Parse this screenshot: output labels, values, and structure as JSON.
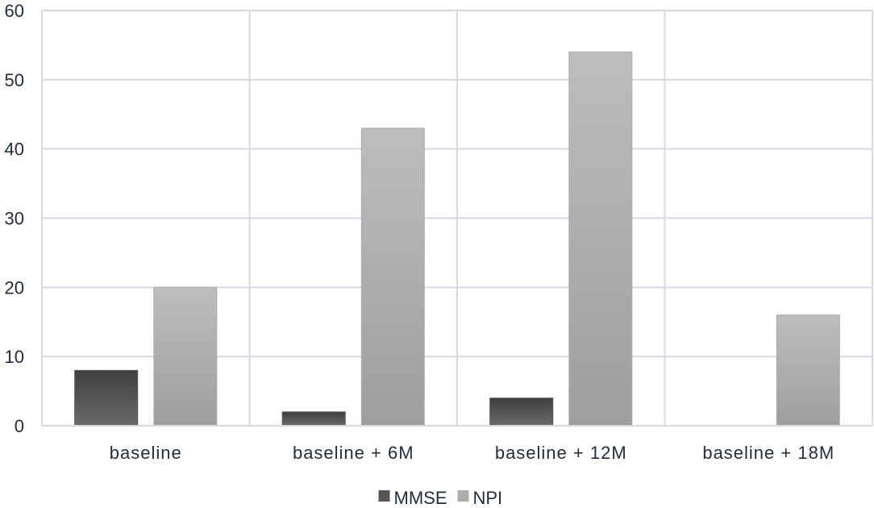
{
  "chart_data": {
    "type": "bar",
    "categories": [
      "baseline",
      "baseline + 6M",
      "baseline + 12M",
      "baseline + 18M"
    ],
    "series": [
      {
        "name": "MMSE",
        "values": [
          8,
          2,
          4,
          0
        ],
        "color": "#555555"
      },
      {
        "name": "NPI",
        "values": [
          20,
          43,
          54,
          16
        ],
        "color": "#adadad"
      }
    ],
    "ylim": [
      0,
      60
    ],
    "yticks": [
      0,
      10,
      20,
      30,
      40,
      50,
      60
    ],
    "grid": true,
    "legend_position": "bottom",
    "title": "",
    "xlabel": "",
    "ylabel": ""
  }
}
